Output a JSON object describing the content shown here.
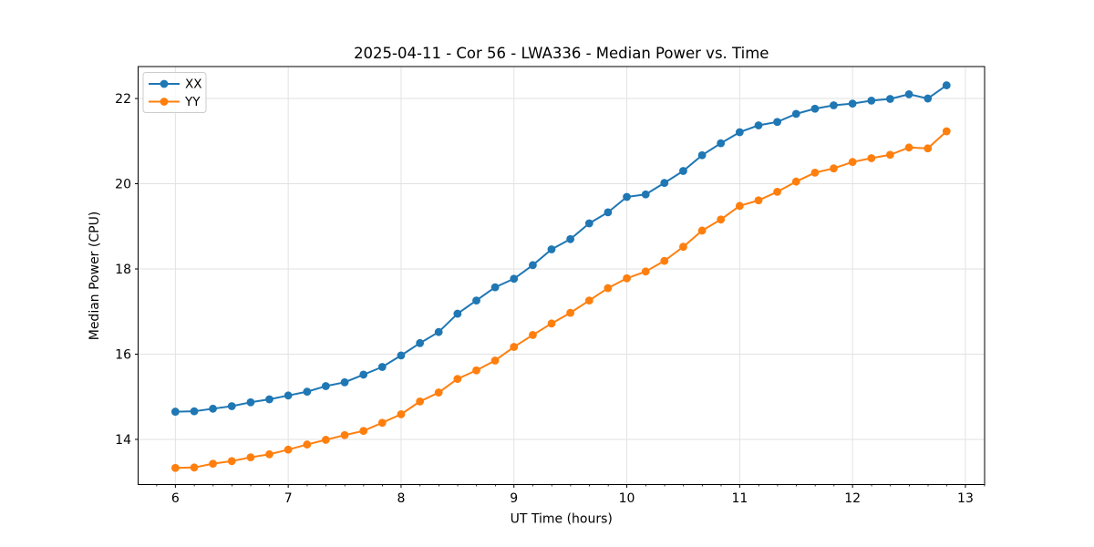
{
  "figure": {
    "background": "#ffffff",
    "plot_background": "#ffffff",
    "spine_color": "#000000",
    "grid_color": "#e2e2e2"
  },
  "chart_data": {
    "type": "line",
    "title": "2025-04-11 - Cor 56 - LWA336 - Median Power vs. Time",
    "xlabel": "UT Time (hours)",
    "ylabel": "Median Power (CPU)",
    "xlim": [
      5.67,
      13.17
    ],
    "ylim": [
      12.94,
      22.75
    ],
    "xticks": [
      6,
      7,
      8,
      9,
      10,
      11,
      12,
      13
    ],
    "yticks": [
      14,
      16,
      18,
      20,
      22
    ],
    "x_minor_step": 0.1667,
    "grid": true,
    "legend_position": "upper left",
    "marker": "circle",
    "x": [
      6.0,
      6.167,
      6.333,
      6.5,
      6.667,
      6.833,
      7.0,
      7.167,
      7.333,
      7.5,
      7.667,
      7.833,
      8.0,
      8.167,
      8.333,
      8.5,
      8.667,
      8.833,
      9.0,
      9.167,
      9.333,
      9.5,
      9.667,
      9.833,
      10.0,
      10.167,
      10.333,
      10.5,
      10.667,
      10.833,
      11.0,
      11.167,
      11.333,
      11.5,
      11.667,
      11.833,
      12.0,
      12.167,
      12.333,
      12.5,
      12.667,
      12.833
    ],
    "series": [
      {
        "name": "XX",
        "color": "#1f77b4",
        "values": [
          14.65,
          14.66,
          14.72,
          14.78,
          14.87,
          14.94,
          15.03,
          15.12,
          15.25,
          15.34,
          15.52,
          15.7,
          15.97,
          16.26,
          16.52,
          16.95,
          17.26,
          17.57,
          17.77,
          18.09,
          18.46,
          18.7,
          19.07,
          19.33,
          19.69,
          19.75,
          20.02,
          20.3,
          20.67,
          20.95,
          21.21,
          21.37,
          21.45,
          21.64,
          21.76,
          21.84,
          21.88,
          21.95,
          21.99,
          22.1,
          22.0,
          22.31
        ]
      },
      {
        "name": "YY",
        "color": "#ff7f0e",
        "values": [
          13.33,
          13.34,
          13.43,
          13.49,
          13.58,
          13.65,
          13.76,
          13.88,
          13.99,
          14.1,
          14.2,
          14.39,
          14.59,
          14.89,
          15.1,
          15.42,
          15.62,
          15.85,
          16.17,
          16.45,
          16.72,
          16.97,
          17.26,
          17.55,
          17.78,
          17.94,
          18.19,
          18.52,
          18.9,
          19.16,
          19.48,
          19.61,
          19.81,
          20.05,
          20.26,
          20.36,
          20.51,
          20.6,
          20.68,
          20.85,
          20.83,
          21.23
        ]
      }
    ]
  }
}
